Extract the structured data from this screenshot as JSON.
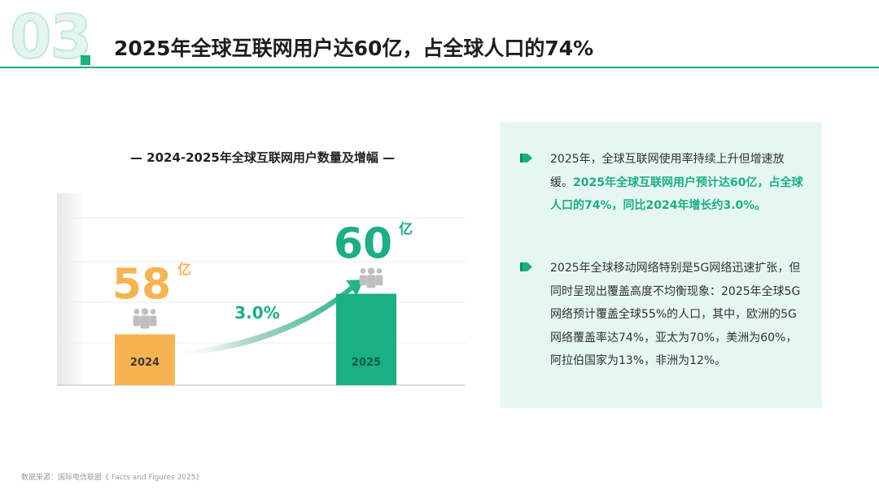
{
  "header": {
    "section_number": "03",
    "title": "2025年全球互联网用户达60亿，占全球人口的74%"
  },
  "colors": {
    "accent": "#1aaf84",
    "bar_2024": "#f7b350",
    "bar_2025": "#1aaf84",
    "panel_bg": "#e6f6f0"
  },
  "chart_data": {
    "type": "bar",
    "title": "— 2024-2025年全球互联网用户数量及增幅 —",
    "categories": [
      "2024",
      "2025"
    ],
    "values": [
      58,
      60
    ],
    "value_labels": [
      "58",
      "60"
    ],
    "unit": "亿",
    "growth_label": "3.0%",
    "icons": [
      "people-icon",
      "people-icon"
    ]
  },
  "panel": {
    "bullets": [
      {
        "plain": "2025年，全球互联网使用率持续上升但增速放缓。",
        "highlight": "2025年全球互联网用户预计达60亿，占全球人口的74%，同比2024年增长约3.0%。"
      },
      {
        "plain": "2025年全球移动网络特别是5G网络迅速扩张，但同时呈现出覆盖高度不均衡现象：2025年全球5G网络预计覆盖全球55%的人口，其中，欧洲的5G网络覆盖率达74%，亚太为70%，美洲为60%，阿拉伯国家为13%，非洲为12%。",
        "highlight": ""
      }
    ]
  },
  "footer": {
    "source": "数据来源：国际电信联盟《 Facts and Figures 2025》"
  }
}
